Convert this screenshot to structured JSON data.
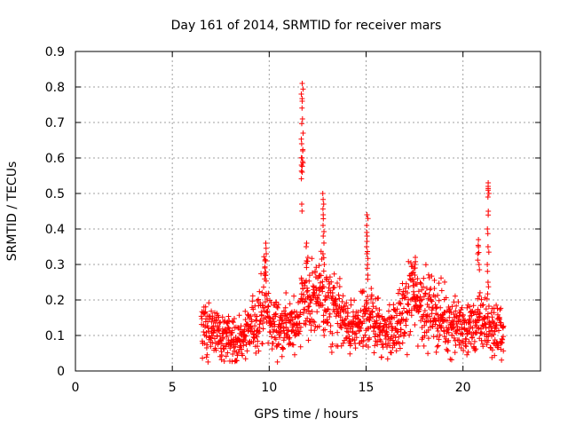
{
  "chart_data": {
    "type": "scatter",
    "title": "Day 161 of 2014, SRMTID for receiver mars",
    "xlabel": "GPS time / hours",
    "ylabel": "SRMTID / TECUs",
    "xlim": [
      0,
      24
    ],
    "ylim": [
      0,
      0.9
    ],
    "x_ticks": [
      0,
      5,
      10,
      15,
      20
    ],
    "x_tick_labels": [
      "0",
      "5",
      "10",
      "15",
      "20"
    ],
    "y_ticks": [
      0,
      0.1,
      0.2,
      0.3,
      0.4,
      0.5,
      0.6,
      0.7,
      0.8,
      0.9
    ],
    "y_tick_labels": [
      "0",
      "0.1",
      "0.2",
      "0.3",
      "0.4",
      "0.5",
      "0.6",
      "0.7",
      "0.8",
      "0.9"
    ],
    "grid": true,
    "marker": "+",
    "series": [
      {
        "name": "SRMTID",
        "color": "#ff0000",
        "profile_x": [
          6.5,
          6.8,
          7.0,
          7.5,
          8.0,
          8.5,
          9.0,
          9.5,
          9.8,
          10.0,
          10.5,
          11.0,
          11.3,
          11.5,
          11.7,
          11.85,
          12.0,
          12.3,
          12.6,
          12.8,
          13.0,
          13.3,
          13.7,
          14.0,
          14.5,
          15.0,
          15.2,
          15.5,
          16.0,
          16.5,
          17.0,
          17.3,
          17.6,
          18.0,
          18.5,
          19.0,
          19.5,
          20.0,
          20.5,
          20.8,
          21.0,
          21.3,
          21.5,
          21.8,
          22.1
        ],
        "profile_y": [
          0.13,
          0.11,
          0.12,
          0.1,
          0.09,
          0.08,
          0.11,
          0.16,
          0.2,
          0.14,
          0.12,
          0.13,
          0.12,
          0.15,
          0.2,
          0.22,
          0.18,
          0.2,
          0.22,
          0.2,
          0.17,
          0.18,
          0.16,
          0.12,
          0.12,
          0.14,
          0.17,
          0.13,
          0.11,
          0.12,
          0.16,
          0.22,
          0.2,
          0.18,
          0.17,
          0.14,
          0.13,
          0.12,
          0.12,
          0.13,
          0.14,
          0.13,
          0.11,
          0.12,
          0.1
        ],
        "spikes": [
          {
            "x": 9.8,
            "y_values": [
              0.27,
              0.29,
              0.31,
              0.33,
              0.36
            ]
          },
          {
            "x": 11.7,
            "y_values": [
              0.47,
              0.56,
              0.58,
              0.59,
              0.6,
              0.62,
              0.64,
              0.67,
              0.71,
              0.76,
              0.78,
              0.81
            ]
          },
          {
            "x": 11.95,
            "y_values": [
              0.31,
              0.32,
              0.36
            ]
          },
          {
            "x": 12.8,
            "y_values": [
              0.3,
              0.33,
              0.38,
              0.41,
              0.44,
              0.47,
              0.5
            ]
          },
          {
            "x": 15.05,
            "y_values": [
              0.27,
              0.3,
              0.33,
              0.35,
              0.38,
              0.41,
              0.44
            ]
          },
          {
            "x": 17.5,
            "y_values": [
              0.27,
              0.29,
              0.3,
              0.32
            ]
          },
          {
            "x": 20.8,
            "y_values": [
              0.3,
              0.33,
              0.35,
              0.37
            ]
          },
          {
            "x": 21.3,
            "y_values": [
              0.25,
              0.3,
              0.35,
              0.4,
              0.45,
              0.5,
              0.52,
              0.53
            ]
          }
        ]
      }
    ]
  }
}
